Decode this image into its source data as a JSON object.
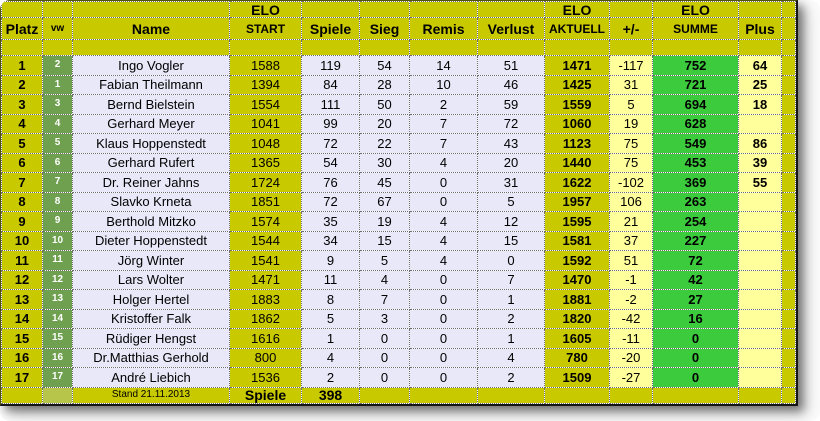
{
  "header": {
    "elo_label": "ELO",
    "columns": [
      "Platz",
      "vw",
      "Name",
      "START",
      "Spiele",
      "Sieg",
      "Remis",
      "Verlust",
      "AKTUELL",
      "+/-",
      "SUMME",
      "Plus"
    ]
  },
  "rows": [
    {
      "platz": "1",
      "vw": "2",
      "name": "Ingo Vogler",
      "elo_start": "1588",
      "spiele": "119",
      "sieg": "54",
      "remis": "14",
      "verlust": "51",
      "elo_aktuell": "1471",
      "plusminus": "-117",
      "summe": "752",
      "plus": "64"
    },
    {
      "platz": "2",
      "vw": "1",
      "name": "Fabian Theilmann",
      "elo_start": "1394",
      "spiele": "84",
      "sieg": "28",
      "remis": "10",
      "verlust": "46",
      "elo_aktuell": "1425",
      "plusminus": "31",
      "summe": "721",
      "plus": "25"
    },
    {
      "platz": "3",
      "vw": "3",
      "name": "Bernd Bielstein",
      "elo_start": "1554",
      "spiele": "111",
      "sieg": "50",
      "remis": "2",
      "verlust": "59",
      "elo_aktuell": "1559",
      "plusminus": "5",
      "summe": "694",
      "plus": "18"
    },
    {
      "platz": "4",
      "vw": "4",
      "name": "Gerhard Meyer",
      "elo_start": "1041",
      "spiele": "99",
      "sieg": "20",
      "remis": "7",
      "verlust": "72",
      "elo_aktuell": "1060",
      "plusminus": "19",
      "summe": "628",
      "plus": ""
    },
    {
      "platz": "5",
      "vw": "5",
      "name": "Klaus Hoppenstedt",
      "elo_start": "1048",
      "spiele": "72",
      "sieg": "22",
      "remis": "7",
      "verlust": "43",
      "elo_aktuell": "1123",
      "plusminus": "75",
      "summe": "549",
      "plus": "86"
    },
    {
      "platz": "6",
      "vw": "6",
      "name": "Gerhard Rufert",
      "elo_start": "1365",
      "spiele": "54",
      "sieg": "30",
      "remis": "4",
      "verlust": "20",
      "elo_aktuell": "1440",
      "plusminus": "75",
      "summe": "453",
      "plus": "39"
    },
    {
      "platz": "7",
      "vw": "7",
      "name": "Dr. Reiner Jahns",
      "elo_start": "1724",
      "spiele": "76",
      "sieg": "45",
      "remis": "0",
      "verlust": "31",
      "elo_aktuell": "1622",
      "plusminus": "-102",
      "summe": "369",
      "plus": "55"
    },
    {
      "platz": "8",
      "vw": "8",
      "name": "Slavko Krneta",
      "elo_start": "1851",
      "spiele": "72",
      "sieg": "67",
      "remis": "0",
      "verlust": "5",
      "elo_aktuell": "1957",
      "plusminus": "106",
      "summe": "263",
      "plus": ""
    },
    {
      "platz": "9",
      "vw": "9",
      "name": "Berthold Mitzko",
      "elo_start": "1574",
      "spiele": "35",
      "sieg": "19",
      "remis": "4",
      "verlust": "12",
      "elo_aktuell": "1595",
      "plusminus": "21",
      "summe": "254",
      "plus": ""
    },
    {
      "platz": "10",
      "vw": "10",
      "name": "Dieter Hoppenstedt",
      "elo_start": "1544",
      "spiele": "34",
      "sieg": "15",
      "remis": "4",
      "verlust": "15",
      "elo_aktuell": "1581",
      "plusminus": "37",
      "summe": "227",
      "plus": ""
    },
    {
      "platz": "11",
      "vw": "11",
      "name": "Jörg Winter",
      "elo_start": "1541",
      "spiele": "9",
      "sieg": "5",
      "remis": "4",
      "verlust": "0",
      "elo_aktuell": "1592",
      "plusminus": "51",
      "summe": "72",
      "plus": ""
    },
    {
      "platz": "12",
      "vw": "12",
      "name": "Lars Wolter",
      "elo_start": "1471",
      "spiele": "11",
      "sieg": "4",
      "remis": "0",
      "verlust": "7",
      "elo_aktuell": "1470",
      "plusminus": "-1",
      "summe": "42",
      "plus": ""
    },
    {
      "platz": "13",
      "vw": "13",
      "name": "Holger Hertel",
      "elo_start": "1883",
      "spiele": "8",
      "sieg": "7",
      "remis": "0",
      "verlust": "1",
      "elo_aktuell": "1881",
      "plusminus": "-2",
      "summe": "27",
      "plus": ""
    },
    {
      "platz": "14",
      "vw": "14",
      "name": "Kristoffer Falk",
      "elo_start": "1862",
      "spiele": "5",
      "sieg": "3",
      "remis": "0",
      "verlust": "2",
      "elo_aktuell": "1820",
      "plusminus": "-42",
      "summe": "16",
      "plus": ""
    },
    {
      "platz": "15",
      "vw": "15",
      "name": "Rüdiger Hengst",
      "elo_start": "1616",
      "spiele": "1",
      "sieg": "0",
      "remis": "0",
      "verlust": "1",
      "elo_aktuell": "1605",
      "plusminus": "-11",
      "summe": "0",
      "plus": ""
    },
    {
      "platz": "16",
      "vw": "16",
      "name": "Dr.Matthias Gerhold",
      "elo_start": "800",
      "spiele": "4",
      "sieg": "0",
      "remis": "0",
      "verlust": "4",
      "elo_aktuell": "780",
      "plusminus": "-20",
      "summe": "0",
      "plus": ""
    },
    {
      "platz": "17",
      "vw": "17",
      "name": "André Liebich",
      "elo_start": "1536",
      "spiele": "2",
      "sieg": "0",
      "remis": "0",
      "verlust": "2",
      "elo_aktuell": "1509",
      "plusminus": "-27",
      "summe": "0",
      "plus": ""
    }
  ],
  "footer": {
    "stand": "Stand 21.11.2013",
    "spiele_label": "Spiele",
    "spiele_total": "398"
  },
  "colors": {
    "olive": "#C9C900",
    "pale_yellow": "#FFFF9B",
    "summe_green": "#3CCB3C",
    "vw_green": "#6FA04F",
    "row_lavender": "#E8E8F8",
    "footer_vw": "#B7C54A",
    "text": "#000000",
    "vw_text": "#FFFFFF"
  }
}
